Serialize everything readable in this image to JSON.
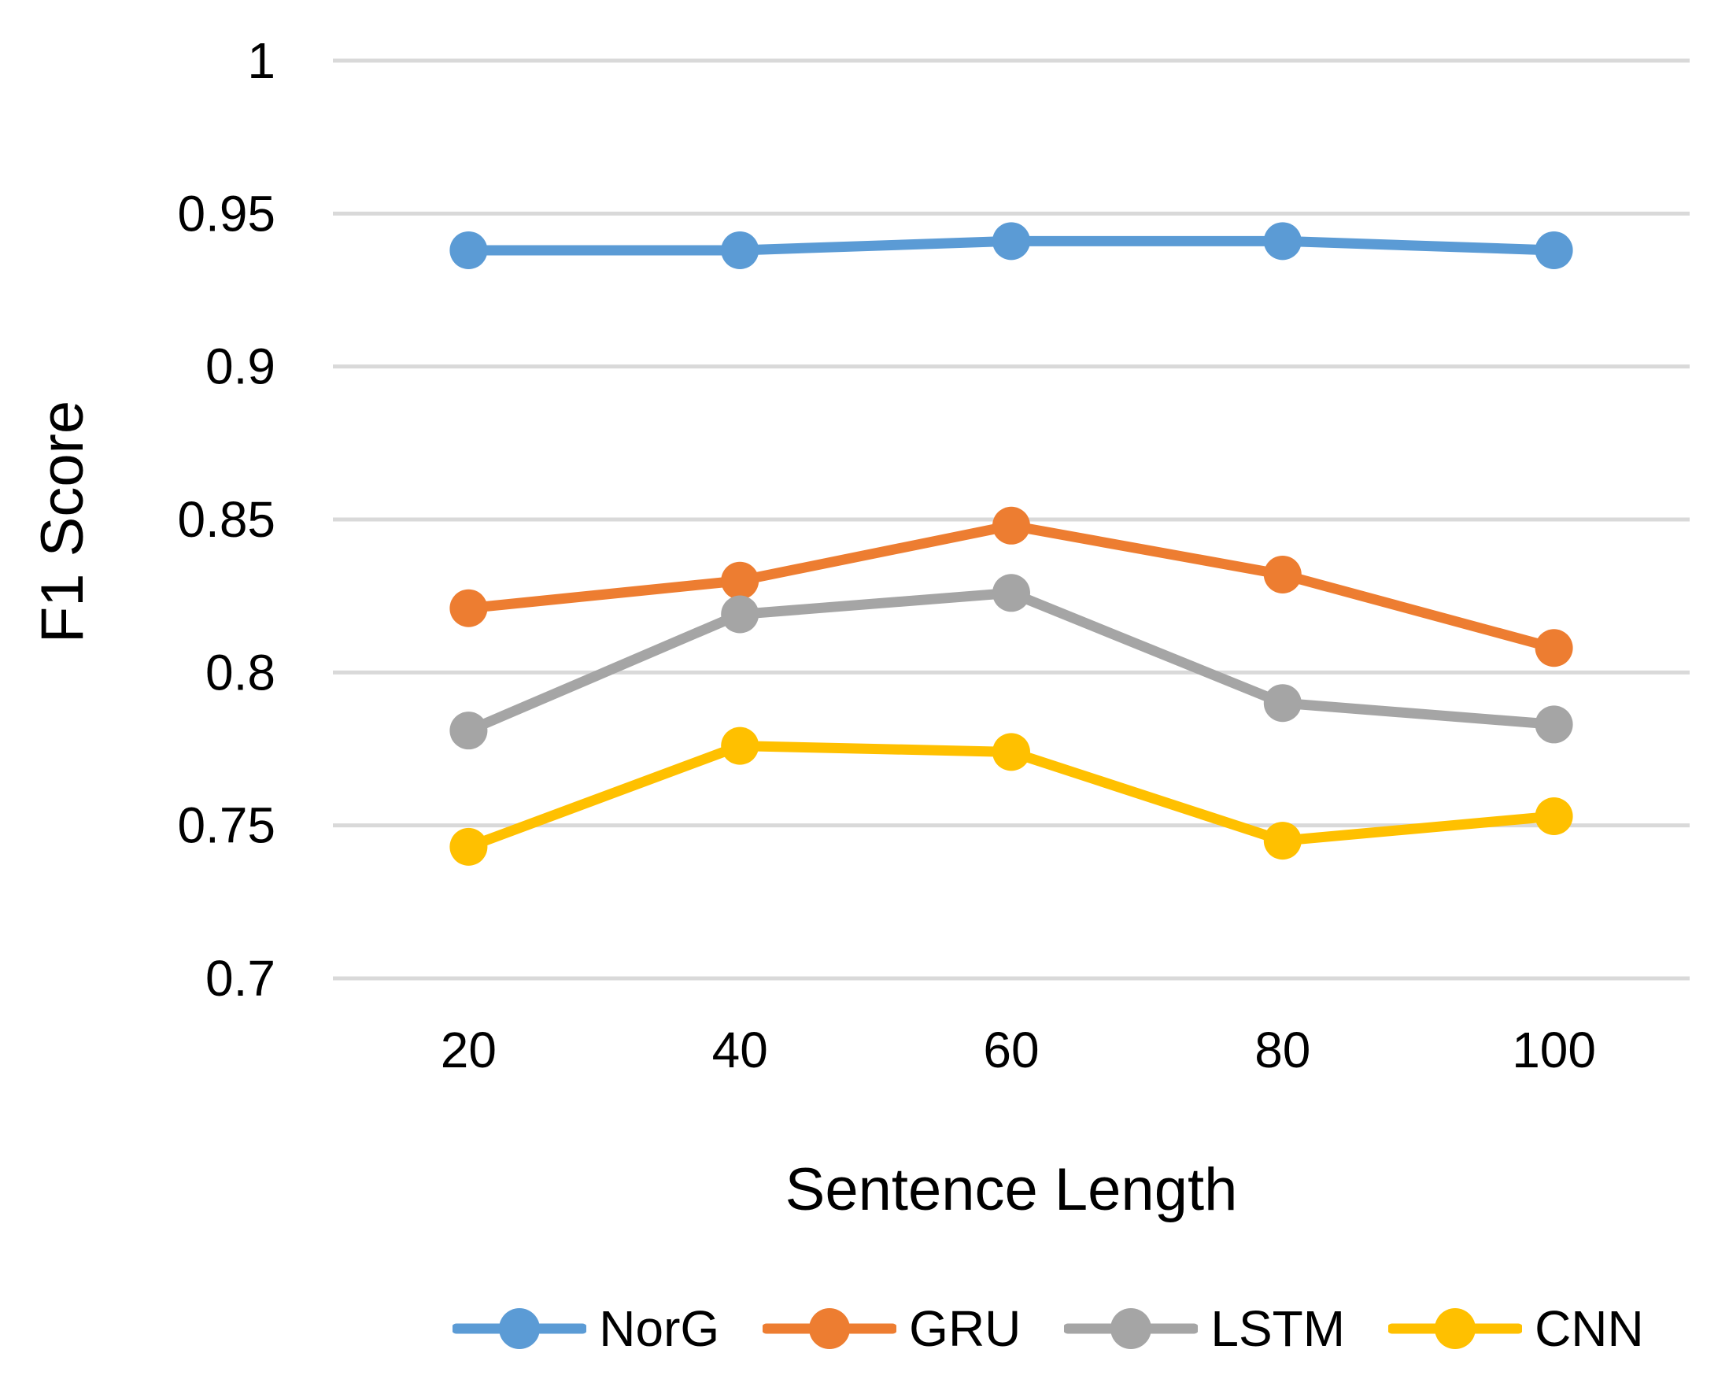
{
  "chart_data": {
    "type": "line",
    "title": "",
    "xlabel": "Sentence Length",
    "ylabel": "F1 Score",
    "categories": [
      20,
      40,
      60,
      80,
      100
    ],
    "x_tick_labels": [
      "20",
      "40",
      "60",
      "80",
      "100"
    ],
    "y_ticks": [
      1,
      0.95,
      0.9,
      0.85,
      0.8,
      0.75,
      0.7
    ],
    "y_tick_labels": [
      "1",
      "0.95",
      "0.9",
      "0.85",
      "0.8",
      "0.75",
      "0.7"
    ],
    "ylim": [
      0.7,
      1.0
    ],
    "grid": "horizontal",
    "legend_position": "bottom",
    "series": [
      {
        "name": "NorG",
        "color": "#5B9BD5",
        "values": [
          0.938,
          0.938,
          0.941,
          0.941,
          0.938
        ]
      },
      {
        "name": "GRU",
        "color": "#ED7D31",
        "values": [
          0.821,
          0.83,
          0.848,
          0.832,
          0.808
        ]
      },
      {
        "name": "LSTM",
        "color": "#A5A5A5",
        "values": [
          0.781,
          0.819,
          0.826,
          0.79,
          0.783
        ]
      },
      {
        "name": "CNN",
        "color": "#FFC000",
        "values": [
          0.743,
          0.776,
          0.774,
          0.745,
          0.753
        ]
      }
    ],
    "gridline_color": "#D9D9D9",
    "text_color": "#000000",
    "background": "#FFFFFF"
  }
}
